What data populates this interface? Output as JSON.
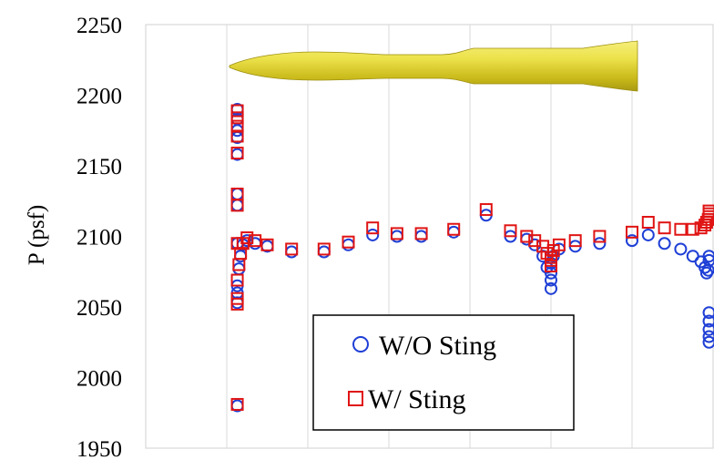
{
  "chart_data": {
    "type": "scatter",
    "ylabel": "P (psf)",
    "xlabel": "",
    "ylim": [
      1950,
      2250
    ],
    "yticks": [
      "1950",
      "2000",
      "2050",
      "2100",
      "2150",
      "2200",
      "2250"
    ],
    "xlim": [
      0,
      7
    ],
    "x_gridlines": [
      1,
      2,
      3,
      4,
      5,
      6
    ],
    "grid": true,
    "legend_position": "bottom-center",
    "series": [
      {
        "name": "W/O Sting",
        "marker": "circle",
        "color": "#1f3fd6",
        "x": [
          1.13,
          1.13,
          1.13,
          1.13,
          1.13,
          1.13,
          1.13,
          1.13,
          1.13,
          1.13,
          1.13,
          1.13,
          1.15,
          1.17,
          1.2,
          1.25,
          1.35,
          1.5,
          1.8,
          2.2,
          2.5,
          2.8,
          3.1,
          3.4,
          3.8,
          4.2,
          4.5,
          4.7,
          4.8,
          4.9,
          4.95,
          5.0,
          5.0,
          5.0,
          5.0,
          5.03,
          5.1,
          5.3,
          5.6,
          6.0,
          6.2,
          6.4,
          6.6,
          6.75,
          6.85,
          6.9,
          6.92,
          6.94,
          6.95,
          6.95,
          6.95,
          6.95,
          6.95,
          6.95,
          6.95
        ],
        "values": [
          2190,
          2183,
          2175,
          2170,
          2158,
          2130,
          2122,
          2095,
          2065,
          2060,
          2053,
          1980,
          2077,
          2086,
          2094,
          2097,
          2095,
          2093,
          2089,
          2089,
          2094,
          2101,
          2100,
          2100,
          2103,
          2115,
          2100,
          2098,
          2094,
          2086,
          2078,
          2069,
          2063,
          2074,
          2081,
          2086,
          2091,
          2093,
          2095,
          2097,
          2101,
          2095,
          2091,
          2086,
          2082,
          2078,
          2074,
          2076,
          2083,
          2086,
          2046,
          2040,
          2034,
          2029,
          2025
        ]
      },
      {
        "name": "W/ Sting",
        "marker": "square",
        "color": "#e01414",
        "x": [
          1.13,
          1.13,
          1.13,
          1.13,
          1.13,
          1.13,
          1.13,
          1.13,
          1.13,
          1.13,
          1.13,
          1.13,
          1.15,
          1.17,
          1.2,
          1.25,
          1.35,
          1.5,
          1.8,
          2.2,
          2.5,
          2.8,
          3.1,
          3.4,
          3.8,
          4.2,
          4.5,
          4.7,
          4.8,
          4.9,
          4.95,
          5.0,
          5.0,
          5.0,
          5.03,
          5.1,
          5.3,
          5.6,
          6.0,
          6.2,
          6.4,
          6.6,
          6.75,
          6.85,
          6.9,
          6.92,
          6.94,
          6.95,
          6.95,
          6.95
        ],
        "values": [
          2189,
          2184,
          2178,
          2171,
          2159,
          2130,
          2122,
          2095,
          2069,
          2056,
          2052,
          1981,
          2080,
          2088,
          2095,
          2099,
          2097,
          2094,
          2091,
          2091,
          2096,
          2106,
          2102,
          2102,
          2105,
          2119,
          2104,
          2100,
          2097,
          2093,
          2088,
          2083,
          2079,
          2085,
          2090,
          2094,
          2097,
          2100,
          2103,
          2110,
          2106,
          2105,
          2105,
          2106,
          2108,
          2110,
          2112,
          2114,
          2116,
          2118
        ]
      }
    ]
  }
}
